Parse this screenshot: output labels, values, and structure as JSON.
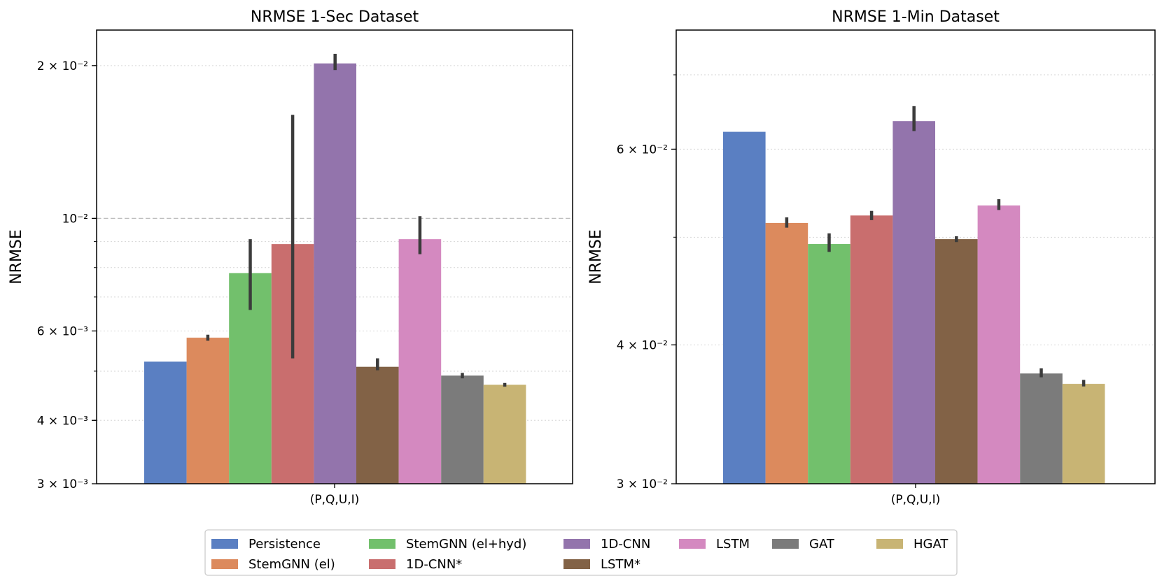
{
  "chart_data": [
    {
      "type": "bar",
      "title": "NRMSE 1-Sec Dataset",
      "xlabel": "",
      "ylabel": "NRMSE",
      "yscale": "log",
      "ylim": [
        0.003,
        0.0235
      ],
      "categories": [
        "(P,Q,U,I)"
      ],
      "y_ticks": [
        {
          "value": 0.003,
          "label": "3 × 10⁻³"
        },
        {
          "value": 0.004,
          "label": "4 × 10⁻³"
        },
        {
          "value": 0.006,
          "label": "6 × 10⁻³"
        },
        {
          "value": 0.01,
          "label": "10⁻²"
        },
        {
          "value": 0.02,
          "label": "2 × 10⁻²"
        }
      ],
      "grid": true,
      "series": [
        {
          "name": "Persistence",
          "value": 0.00522,
          "err": null
        },
        {
          "name": "StemGNN (el)",
          "value": 0.00582,
          "err": [
            0.00574,
            0.0059
          ]
        },
        {
          "name": "StemGNN (el+hyd)",
          "value": 0.0078,
          "err": [
            0.0066,
            0.0091
          ]
        },
        {
          "name": "1D-CNN*",
          "value": 0.0089,
          "err": [
            0.0053,
            0.016
          ]
        },
        {
          "name": "1D-CNN",
          "value": 0.0202,
          "err": [
            0.0196,
            0.0211
          ]
        },
        {
          "name": "LSTM*",
          "value": 0.0051,
          "err": [
            0.00502,
            0.0053
          ]
        },
        {
          "name": "LSTM",
          "value": 0.0091,
          "err": [
            0.0085,
            0.0101
          ]
        },
        {
          "name": "GAT",
          "value": 0.0049,
          "err": [
            0.00484,
            0.00496
          ]
        },
        {
          "name": "HGAT",
          "value": 0.0047,
          "err": [
            0.00466,
            0.00474
          ]
        }
      ]
    },
    {
      "type": "bar",
      "title": "NRMSE 1-Min Dataset",
      "xlabel": "",
      "ylabel": "NRMSE",
      "yscale": "log",
      "ylim": [
        0.03,
        0.0768
      ],
      "categories": [
        "(P,Q,U,I)"
      ],
      "y_ticks": [
        {
          "value": 0.03,
          "label": "3 × 10⁻²"
        },
        {
          "value": 0.04,
          "label": "4 × 10⁻²"
        },
        {
          "value": 0.06,
          "label": "6 × 10⁻²"
        }
      ],
      "grid": true,
      "series": [
        {
          "name": "Persistence",
          "value": 0.0622,
          "err": null
        },
        {
          "name": "StemGNN (el)",
          "value": 0.0515,
          "err": [
            0.051,
            0.0521
          ]
        },
        {
          "name": "StemGNN (el+hyd)",
          "value": 0.0493,
          "err": [
            0.0485,
            0.0504
          ]
        },
        {
          "name": "1D-CNN*",
          "value": 0.0523,
          "err": [
            0.0518,
            0.0528
          ]
        },
        {
          "name": "1D-CNN",
          "value": 0.0636,
          "err": [
            0.0623,
            0.0656
          ]
        },
        {
          "name": "LSTM*",
          "value": 0.0498,
          "err": [
            0.0495,
            0.0501
          ]
        },
        {
          "name": "LSTM",
          "value": 0.0534,
          "err": [
            0.0529,
            0.0541
          ]
        },
        {
          "name": "GAT",
          "value": 0.0377,
          "err": [
            0.0374,
            0.0381
          ]
        },
        {
          "name": "HGAT",
          "value": 0.0369,
          "err": [
            0.0367,
            0.0372
          ]
        }
      ]
    }
  ],
  "legend": {
    "placement": "bottom-center",
    "items": [
      {
        "name": "Persistence",
        "color": "#5a7fc2"
      },
      {
        "name": "StemGNN (el)",
        "color": "#dc8a5d"
      },
      {
        "name": "StemGNN (el+hyd)",
        "color": "#72c06c"
      },
      {
        "name": "1D-CNN*",
        "color": "#c96e6e"
      },
      {
        "name": "1D-CNN",
        "color": "#9374ac"
      },
      {
        "name": "LSTM*",
        "color": "#826246"
      },
      {
        "name": "LSTM",
        "color": "#d489c0"
      },
      {
        "name": "GAT",
        "color": "#7b7b7b"
      },
      {
        "name": "HGAT",
        "color": "#c8b474"
      }
    ]
  }
}
